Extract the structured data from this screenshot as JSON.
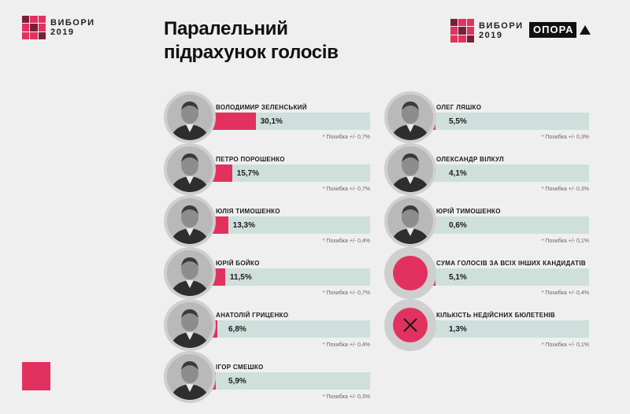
{
  "brand": {
    "logo_line1": "ВИБОРИ",
    "logo_line2": "2019",
    "partner": "ОПОРА",
    "accent_color": "#e2315f",
    "bar_bg_color": "#cfe0dc"
  },
  "title": {
    "line1": "Паралельний",
    "line2": "підрахунок голосів"
  },
  "chart_data": {
    "type": "bar",
    "orientation": "horizontal",
    "title": "Паралельний підрахунок голосів",
    "unit": "%",
    "xlim": [
      0,
      100
    ],
    "categories": [
      "ВОЛОДИМИР ЗЕЛЕНСЬКИЙ",
      "ПЕТРО ПОРОШЕНКО",
      "ЮЛІЯ ТИМОШЕНКО",
      "ЮРІЙ БОЙКО",
      "АНАТОЛІЙ ГРИЦЕНКО",
      "ІГОР СМЕШКО",
      "ОЛЕГ ЛЯШКО",
      "ОЛЕКСАНДР ВІЛКУЛ",
      "ЮРІЙ ТИМОШЕНКО",
      "СУМА ГОЛОСІВ ЗА ВСІХ ІНШИХ КАНДИДАТІВ",
      "КІЛЬКІСТЬ НЕДІЙСНИХ БЮЛЕТЕНІВ"
    ],
    "values": [
      30.1,
      15.7,
      13.3,
      11.5,
      6.8,
      5.9,
      5.5,
      4.1,
      0.6,
      5.1,
      1.3
    ],
    "value_labels": [
      "30,1%",
      "15,7%",
      "13,3%",
      "11,5%",
      "6,8%",
      "5,9%",
      "5,5%",
      "4,1%",
      "0,6%",
      "5,1%",
      "1,3%"
    ],
    "margin_notes": [
      "* Похибка +/- 0,7%",
      "* Похибка +/- 0,7%",
      "* Похибка +/- 0,4%",
      "* Похибка +/- 0,7%",
      "* Похибка +/- 0,4%",
      "* Похибка +/- 0,3%",
      "* Похибка +/- 0,3%",
      "* Похибка +/- 0,3%",
      "* Похибка +/- 0,1%",
      "* Похибка +/- 0,4%",
      "* Похибка +/- 0,1%"
    ],
    "icons": [
      "portrait-icon",
      "portrait-icon",
      "portrait-icon",
      "portrait-icon",
      "portrait-icon",
      "portrait-icon",
      "portrait-icon",
      "portrait-icon",
      "portrait-icon",
      "circle-icon",
      "cross-icon"
    ]
  }
}
